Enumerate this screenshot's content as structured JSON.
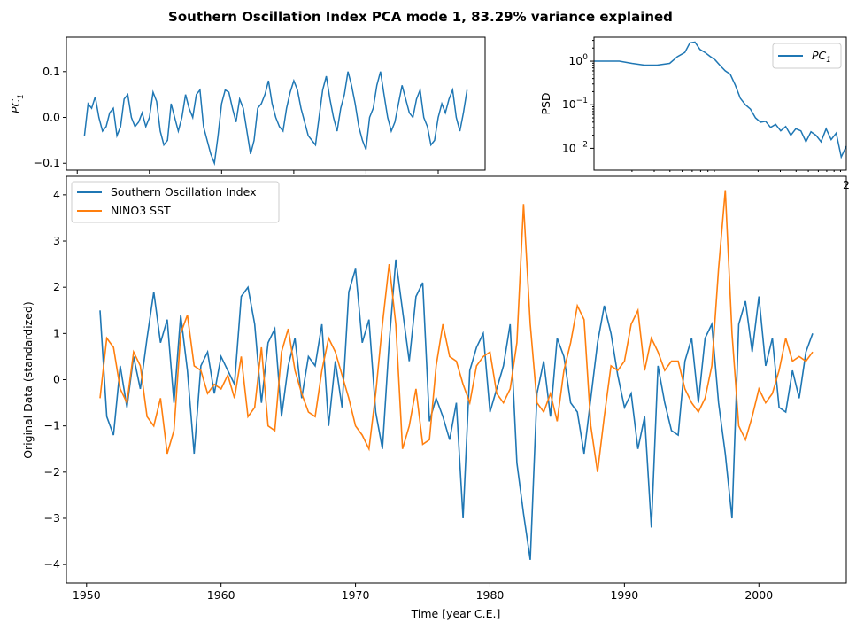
{
  "figure": {
    "title": "Southern Oscillation Index PCA mode 1, 83.29% variance explained"
  },
  "colors": {
    "series1": "#1f77b4",
    "series2": "#ff7f0e"
  },
  "chart_data": [
    {
      "id": "pc-timeseries",
      "type": "line",
      "title": "",
      "xlabel": "",
      "ylabel": "PC",
      "ylabel_subscript": "1",
      "xlim": [
        1948.5,
        2006.5
      ],
      "ylim": [
        -0.115,
        0.175
      ],
      "yticks": [
        -0.1,
        0.0,
        0.1
      ],
      "ytick_labels": [
        "−0.1",
        "0.0",
        "0.1"
      ],
      "xticks": [
        1950,
        1960,
        1970,
        1980,
        1990,
        2000
      ],
      "show_xtick_labels": false,
      "series": [
        {
          "color": "#1f77b4",
          "x": [
            1951.0,
            1951.5,
            1952.0,
            1952.5,
            1953.0,
            1953.5,
            1954.0,
            1954.5,
            1955.0,
            1955.5,
            1956.0,
            1956.5,
            1957.0,
            1957.5,
            1958.0,
            1958.5,
            1959.0,
            1959.5,
            1960.0,
            1960.5,
            1961.0,
            1961.5,
            1962.0,
            1962.5,
            1963.0,
            1963.5,
            1964.0,
            1964.5,
            1965.0,
            1965.5,
            1966.0,
            1966.5,
            1967.0,
            1967.5,
            1968.0,
            1968.5,
            1969.0,
            1969.5,
            1970.0,
            1970.5,
            1971.0,
            1971.5,
            1972.0,
            1972.5,
            1973.0,
            1973.5,
            1974.0,
            1974.5,
            1975.0,
            1975.5,
            1976.0,
            1976.5,
            1977.0,
            1977.5,
            1978.0,
            1978.5,
            1979.0,
            1979.5,
            1980.0,
            1980.5,
            1981.0,
            1981.5,
            1982.0,
            1982.5,
            1983.0,
            1983.5,
            1984.0,
            1984.5,
            1985.0,
            1985.5,
            1986.0,
            1986.5,
            1987.0,
            1987.5,
            1988.0,
            1988.5,
            1989.0,
            1989.5,
            1990.0,
            1990.5,
            1991.0,
            1991.5,
            1992.0,
            1992.5,
            1993.0,
            1993.5,
            1994.0,
            1994.5,
            1995.0,
            1995.5,
            1996.0,
            1996.5,
            1997.0,
            1997.5,
            1998.0,
            1998.5,
            1999.0,
            1999.5,
            2000.0,
            2000.5,
            2001.0,
            2001.5,
            2002.0,
            2002.5,
            2003.0,
            2003.5,
            2004.0
          ],
          "y": [
            -0.04,
            0.03,
            0.02,
            0.045,
            0.0,
            -0.03,
            -0.02,
            0.01,
            0.02,
            -0.04,
            -0.02,
            0.04,
            0.05,
            0.0,
            -0.02,
            -0.01,
            0.01,
            -0.02,
            0.0,
            0.055,
            0.035,
            -0.03,
            -0.06,
            -0.05,
            0.03,
            0.0,
            -0.03,
            0.0,
            0.05,
            0.02,
            0.0,
            0.05,
            0.06,
            -0.02,
            -0.05,
            -0.08,
            -0.1,
            -0.04,
            0.03,
            0.06,
            0.055,
            0.02,
            -0.01,
            0.04,
            0.02,
            -0.03,
            -0.08,
            -0.05,
            0.02,
            0.03,
            0.05,
            0.08,
            0.03,
            0.0,
            -0.02,
            -0.03,
            0.02,
            0.055,
            0.08,
            0.06,
            0.02,
            -0.01,
            -0.04,
            -0.05,
            -0.06,
            0.0,
            0.06,
            0.09,
            0.04,
            0.0,
            -0.03,
            0.02,
            0.05,
            0.1,
            0.07,
            0.03,
            -0.02,
            -0.05,
            -0.07,
            0.0,
            0.02,
            0.07,
            0.1,
            0.05,
            0.0,
            -0.03,
            -0.01,
            0.03,
            0.07,
            0.04,
            0.01,
            0.0,
            0.04,
            0.06,
            0.0,
            -0.02,
            -0.06,
            -0.05,
            0.0,
            0.03,
            0.01,
            0.04,
            0.06,
            0.0,
            -0.03,
            0.01,
            0.06
          ]
        }
      ]
    },
    {
      "id": "pc-psd",
      "type": "line",
      "title": "",
      "xlabel": "",
      "ylabel": "PSD",
      "yscale": "log",
      "xscale": "log",
      "ylim_log10": [
        -2.5,
        0.55
      ],
      "ytick_base": "10",
      "ytick_exponents": [
        "0",
        "−1",
        "−2"
      ],
      "ytick_values_log10": [
        0,
        -1,
        -2
      ],
      "edge_tick_label": "2",
      "legend": {
        "placement": "upper right",
        "entries": [
          "PC₁"
        ],
        "label_main": "PC",
        "label_sub": "1"
      },
      "series": [
        {
          "name": "PC₁",
          "color": "#1f77b4",
          "x_frac": [
            0.0,
            0.05,
            0.1,
            0.15,
            0.2,
            0.25,
            0.3,
            0.33,
            0.36,
            0.38,
            0.4,
            0.42,
            0.44,
            0.46,
            0.48,
            0.5,
            0.52,
            0.54,
            0.56,
            0.58,
            0.6,
            0.62,
            0.64,
            0.66,
            0.68,
            0.7,
            0.72,
            0.74,
            0.76,
            0.78,
            0.8,
            0.82,
            0.84,
            0.86,
            0.88,
            0.9,
            0.92,
            0.94,
            0.96,
            0.98,
            1.0
          ],
          "y_log10": [
            0.0,
            0.0,
            0.0,
            -0.05,
            -0.09,
            -0.09,
            -0.05,
            0.1,
            0.2,
            0.42,
            0.44,
            0.27,
            0.2,
            0.11,
            0.03,
            -0.1,
            -0.22,
            -0.3,
            -0.55,
            -0.85,
            -1.0,
            -1.1,
            -1.3,
            -1.4,
            -1.38,
            -1.52,
            -1.45,
            -1.6,
            -1.5,
            -1.7,
            -1.55,
            -1.6,
            -1.85,
            -1.62,
            -1.7,
            -1.85,
            -1.55,
            -1.8,
            -1.65,
            -2.2,
            -1.95
          ]
        }
      ]
    },
    {
      "id": "original-data",
      "type": "line",
      "title": "",
      "xlabel": "Time [year C.E.]",
      "ylabel": "Original Data (standardized)",
      "xlim": [
        1948.5,
        2006.5
      ],
      "ylim": [
        -4.4,
        4.4
      ],
      "xticks": [
        1950,
        1960,
        1970,
        1980,
        1990,
        2000
      ],
      "yticks": [
        -4,
        -3,
        -2,
        -1,
        0,
        1,
        2,
        3,
        4
      ],
      "ytick_labels": [
        "−4",
        "−3",
        "−2",
        "−1",
        "0",
        "1",
        "2",
        "3",
        "4"
      ],
      "legend": {
        "placement": "upper left",
        "entries": [
          "Southern Oscillation Index",
          "NINO3 SST"
        ]
      },
      "series": [
        {
          "name": "Southern Oscillation Index",
          "color": "#1f77b4",
          "x": [
            1951.0,
            1951.5,
            1952.0,
            1952.5,
            1953.0,
            1953.5,
            1954.0,
            1954.5,
            1955.0,
            1955.5,
            1956.0,
            1956.5,
            1957.0,
            1957.5,
            1958.0,
            1958.5,
            1959.0,
            1959.5,
            1960.0,
            1960.5,
            1961.0,
            1961.5,
            1962.0,
            1962.5,
            1963.0,
            1963.5,
            1964.0,
            1964.5,
            1965.0,
            1965.5,
            1966.0,
            1966.5,
            1967.0,
            1967.5,
            1968.0,
            1968.5,
            1969.0,
            1969.5,
            1970.0,
            1970.5,
            1971.0,
            1971.5,
            1972.0,
            1972.5,
            1973.0,
            1973.5,
            1974.0,
            1974.5,
            1975.0,
            1975.5,
            1976.0,
            1976.5,
            1977.0,
            1977.5,
            1978.0,
            1978.5,
            1979.0,
            1979.5,
            1980.0,
            1980.5,
            1981.0,
            1981.5,
            1982.0,
            1982.5,
            1983.0,
            1983.5,
            1984.0,
            1984.5,
            1985.0,
            1985.5,
            1986.0,
            1986.5,
            1987.0,
            1987.5,
            1988.0,
            1988.5,
            1989.0,
            1989.5,
            1990.0,
            1990.5,
            1991.0,
            1991.5,
            1992.0,
            1992.5,
            1993.0,
            1993.5,
            1994.0,
            1994.5,
            1995.0,
            1995.5,
            1996.0,
            1996.5,
            1997.0,
            1997.5,
            1998.0,
            1998.5,
            1999.0,
            1999.5,
            2000.0,
            2000.5,
            2001.0,
            2001.5,
            2002.0,
            2002.5,
            2003.0,
            2003.5,
            2004.0
          ],
          "y": [
            1.5,
            -0.8,
            -1.2,
            0.3,
            -0.6,
            0.5,
            -0.2,
            0.9,
            1.9,
            0.8,
            1.3,
            -0.5,
            1.4,
            0.2,
            -1.6,
            0.3,
            0.6,
            -0.3,
            0.5,
            0.2,
            -0.1,
            1.8,
            2.0,
            1.2,
            -0.5,
            0.8,
            1.1,
            -0.8,
            0.3,
            0.9,
            -0.4,
            0.5,
            0.3,
            1.2,
            -1.0,
            0.4,
            -0.6,
            1.9,
            2.4,
            0.8,
            1.3,
            -0.7,
            -1.5,
            0.8,
            2.6,
            1.5,
            0.4,
            1.8,
            2.1,
            -0.9,
            -0.4,
            -0.8,
            -1.3,
            -0.5,
            -3.0,
            0.2,
            0.7,
            1.0,
            -0.7,
            -0.2,
            0.3,
            1.2,
            -1.8,
            -2.9,
            -3.9,
            -0.3,
            0.4,
            -0.8,
            0.9,
            0.5,
            -0.5,
            -0.7,
            -1.6,
            -0.4,
            0.8,
            1.6,
            1.0,
            0.1,
            -0.6,
            -0.3,
            -1.5,
            -0.8,
            -3.2,
            0.3,
            -0.5,
            -1.1,
            -1.2,
            0.4,
            0.9,
            -0.5,
            0.9,
            1.2,
            -0.5,
            -1.6,
            -3.0,
            1.2,
            1.7,
            0.6,
            1.8,
            0.3,
            0.9,
            -0.6,
            -0.7,
            0.2,
            -0.4,
            0.6,
            1.0
          ]
        },
        {
          "name": "NINO3 SST",
          "color": "#ff7f0e",
          "x": [
            1951.0,
            1951.5,
            1952.0,
            1952.5,
            1953.0,
            1953.5,
            1954.0,
            1954.5,
            1955.0,
            1955.5,
            1956.0,
            1956.5,
            1957.0,
            1957.5,
            1958.0,
            1958.5,
            1959.0,
            1959.5,
            1960.0,
            1960.5,
            1961.0,
            1961.5,
            1962.0,
            1962.5,
            1963.0,
            1963.5,
            1964.0,
            1964.5,
            1965.0,
            1965.5,
            1966.0,
            1966.5,
            1967.0,
            1967.5,
            1968.0,
            1968.5,
            1969.0,
            1969.5,
            1970.0,
            1970.5,
            1971.0,
            1971.5,
            1972.0,
            1972.5,
            1973.0,
            1973.5,
            1974.0,
            1974.5,
            1975.0,
            1975.5,
            1976.0,
            1976.5,
            1977.0,
            1977.5,
            1978.0,
            1978.5,
            1979.0,
            1979.5,
            1980.0,
            1980.5,
            1981.0,
            1981.5,
            1982.0,
            1982.5,
            1983.0,
            1983.5,
            1984.0,
            1984.5,
            1985.0,
            1985.5,
            1986.0,
            1986.5,
            1987.0,
            1987.5,
            1988.0,
            1988.5,
            1989.0,
            1989.5,
            1990.0,
            1990.5,
            1991.0,
            1991.5,
            1992.0,
            1992.5,
            1993.0,
            1993.5,
            1994.0,
            1994.5,
            1995.0,
            1995.5,
            1996.0,
            1996.5,
            1997.0,
            1997.5,
            1998.0,
            1998.5,
            1999.0,
            1999.5,
            2000.0,
            2000.5,
            2001.0,
            2001.5,
            2002.0,
            2002.5,
            2003.0,
            2003.5,
            2004.0
          ],
          "y": [
            -0.4,
            0.9,
            0.7,
            -0.2,
            -0.5,
            0.6,
            0.3,
            -0.8,
            -1.0,
            -0.4,
            -1.6,
            -1.1,
            1.0,
            1.4,
            0.3,
            0.2,
            -0.3,
            -0.1,
            -0.2,
            0.1,
            -0.4,
            0.5,
            -0.8,
            -0.6,
            0.7,
            -1.0,
            -1.1,
            0.6,
            1.1,
            0.2,
            -0.3,
            -0.7,
            -0.8,
            0.2,
            0.9,
            0.6,
            0.1,
            -0.4,
            -1.0,
            -1.2,
            -1.5,
            -0.3,
            1.2,
            2.5,
            1.2,
            -1.5,
            -1.0,
            -0.2,
            -1.4,
            -1.3,
            0.3,
            1.2,
            0.5,
            0.4,
            -0.1,
            -0.5,
            0.3,
            0.5,
            0.6,
            -0.3,
            -0.5,
            -0.2,
            0.8,
            3.8,
            1.2,
            -0.5,
            -0.7,
            -0.3,
            -0.9,
            0.2,
            0.8,
            1.6,
            1.3,
            -1.0,
            -2.0,
            -0.8,
            0.3,
            0.2,
            0.4,
            1.2,
            1.5,
            0.2,
            0.9,
            0.6,
            0.2,
            0.4,
            0.4,
            -0.2,
            -0.5,
            -0.7,
            -0.4,
            0.3,
            2.4,
            4.1,
            1.0,
            -1.0,
            -1.3,
            -0.8,
            -0.2,
            -0.5,
            -0.3,
            0.2,
            0.9,
            0.4,
            0.5,
            0.4,
            0.6
          ]
        }
      ]
    }
  ]
}
